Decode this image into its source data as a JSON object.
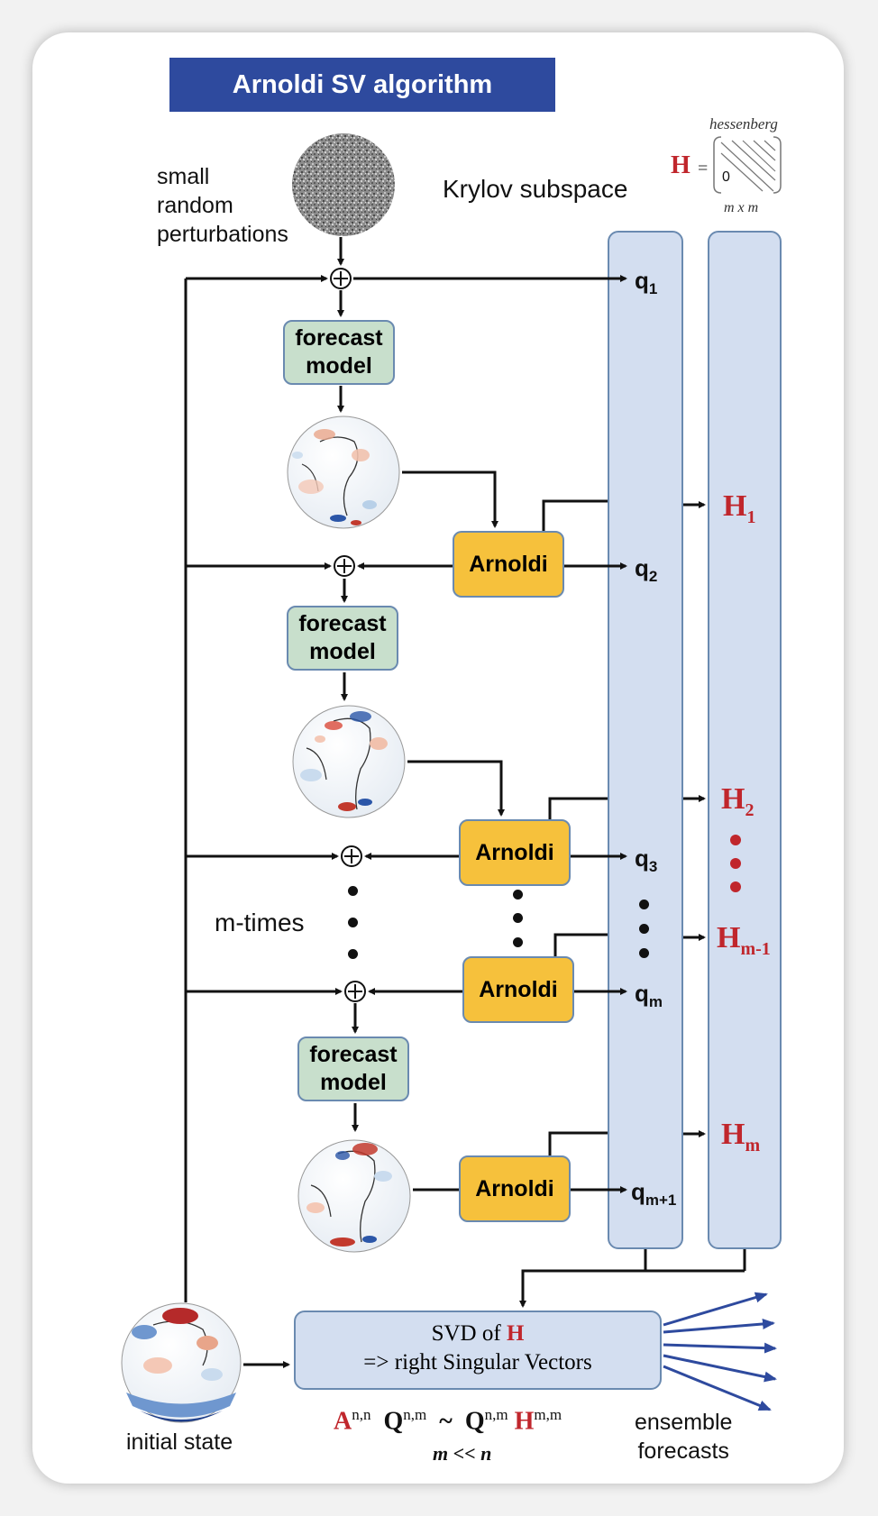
{
  "title": "Arnoldi SV algorithm",
  "labels": {
    "perturbations": [
      "small",
      "random",
      "perturbations"
    ],
    "krylov": "Krylov subspace",
    "m_times": "m-times",
    "initial_state": "initial state",
    "ensemble": [
      "ensemble",
      "forecasts"
    ]
  },
  "hessenberg": {
    "caption": "hessenberg",
    "symbol": "H",
    "equals": "=",
    "zero": "0",
    "dims": "m x m"
  },
  "forecast_model": [
    "forecast",
    "model"
  ],
  "arnoldi_label": "Arnoldi",
  "q_vectors": [
    {
      "base": "q",
      "sub": "1"
    },
    {
      "base": "q",
      "sub": "2"
    },
    {
      "base": "q",
      "sub": "3"
    },
    {
      "base": "q",
      "sub": "m"
    },
    {
      "base": "q",
      "sub": "m+1"
    }
  ],
  "h_blocks": [
    {
      "base": "H",
      "sub": "1"
    },
    {
      "base": "H",
      "sub": "2"
    },
    {
      "base": "H",
      "sub": "m-1"
    },
    {
      "base": "H",
      "sub": "m"
    }
  ],
  "svd": {
    "line1_prefix": "SVD of",
    "line1_symbol": "H",
    "line2": "=>  right Singular Vectors"
  },
  "formula": {
    "A": "A",
    "A_sup": "n,n",
    "Q1": "Q",
    "Q1_sup": "n,m",
    "tilde": "~",
    "Q2": "Q",
    "Q2_sup": "n,m",
    "H": "H",
    "H_sup": "m,m",
    "condition": "m << n"
  },
  "colors": {
    "title_bg": "#2e4a9e",
    "forecast_box": "#c8dfcc",
    "arnoldi_box": "#f6c13c",
    "column": "#d3def0",
    "accent_red": "#c0262c",
    "ensemble_arrows": "#2e4a9e"
  }
}
